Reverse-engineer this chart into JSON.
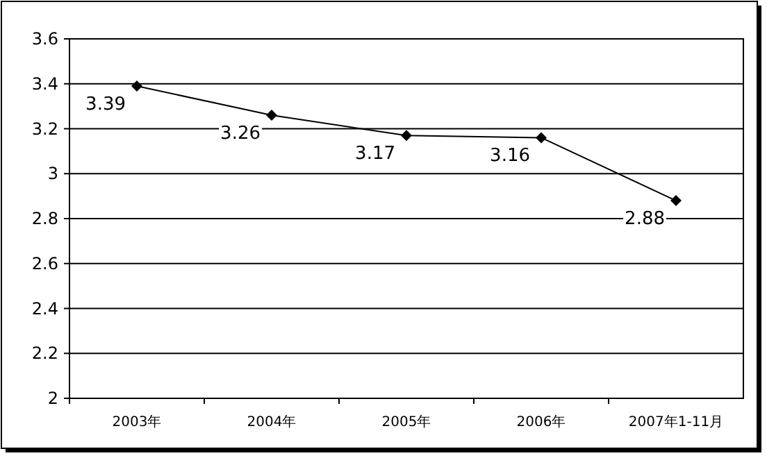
{
  "chart_data": {
    "type": "line",
    "categories": [
      "2003年",
      "2004年",
      "2005年",
      "2006年",
      "2007年1-11月"
    ],
    "series": [
      {
        "color": "#000000",
        "values": [
          3.39,
          3.26,
          3.17,
          3.16,
          2.88
        ]
      }
    ],
    "ylim": [
      2,
      3.6
    ],
    "yticks": [
      2,
      2.2,
      2.4,
      2.6,
      2.8,
      3,
      3.2,
      3.4,
      3.6
    ],
    "grid": "y",
    "marker": "diamond",
    "line_style": "solid",
    "data_labels": true
  }
}
